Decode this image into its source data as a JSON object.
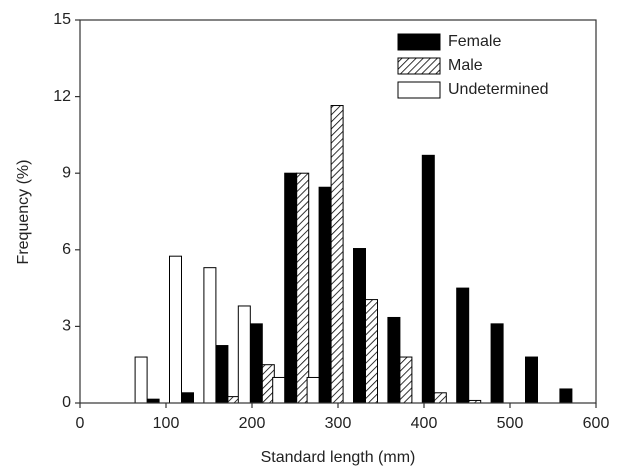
{
  "chart_data": {
    "type": "bar",
    "x_label": "Standard length (mm)",
    "y_label": "Frequency (%)",
    "x": [
      85,
      125,
      165,
      205,
      245,
      285,
      325,
      365,
      405,
      445,
      485,
      525,
      565
    ],
    "series": [
      {
        "name": "Female",
        "color": "#000000",
        "hatch": false,
        "values": [
          0.15,
          0.4,
          2.25,
          3.1,
          9.0,
          8.45,
          6.05,
          3.35,
          9.7,
          4.5,
          3.1,
          1.8,
          0.55
        ]
      },
      {
        "name": "Male",
        "color": "#000000",
        "hatch": true,
        "values": [
          0,
          0,
          0.25,
          1.5,
          9.0,
          11.65,
          4.05,
          1.8,
          0.4,
          0.1,
          0,
          0,
          0
        ]
      },
      {
        "name": "Undetermined",
        "color": "#ffffff",
        "hatch": false,
        "values": [
          1.8,
          5.75,
          5.3,
          3.8,
          1.0,
          1.0,
          0,
          0,
          0,
          0,
          0,
          0,
          0
        ]
      }
    ],
    "xlim": [
      0,
      600
    ],
    "xticks": [
      0,
      100,
      200,
      300,
      400,
      500,
      600
    ],
    "ylim": [
      0,
      15
    ],
    "yticks": [
      0,
      3,
      6,
      9,
      12,
      15
    ],
    "legend": "top-right"
  }
}
